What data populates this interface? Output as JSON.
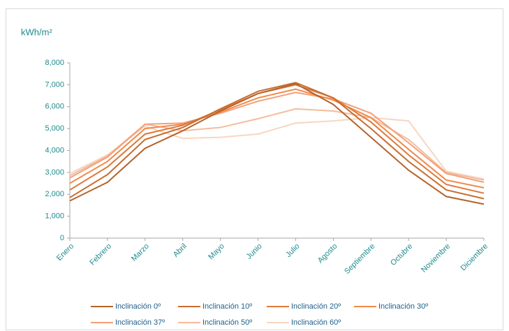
{
  "chart_data": {
    "type": "line",
    "y_label": "kWh/m²",
    "categories": [
      "Enero",
      "Febrero",
      "Marzo",
      "Abril",
      "Mayo",
      "Junio",
      "Julio",
      "Agosto",
      "Septiembre",
      "Octubre",
      "Noviembre",
      "Diciembre"
    ],
    "series": [
      {
        "name": "Inclinación 0º",
        "color": "#b5622a",
        "values": [
          1700,
          2550,
          4100,
          4900,
          5800,
          6600,
          7050,
          6100,
          4600,
          3100,
          1900,
          1550
        ]
      },
      {
        "name": "Inclinación 10º",
        "color": "#c86d30",
        "values": [
          1850,
          2900,
          4500,
          5050,
          5900,
          6700,
          7100,
          6400,
          5000,
          3500,
          2200,
          1800
        ]
      },
      {
        "name": "Inclinación 20º",
        "color": "#dc7a3c",
        "values": [
          2200,
          3250,
          4750,
          5150,
          5850,
          6600,
          7000,
          6400,
          5300,
          3800,
          2450,
          2050
        ]
      },
      {
        "name": "Inclinación 30º",
        "color": "#f08a4b",
        "values": [
          2500,
          3500,
          5000,
          5200,
          5750,
          6400,
          6800,
          6300,
          5500,
          4050,
          2650,
          2300
        ]
      },
      {
        "name": "Inclinación 37º",
        "color": "#f2a07a",
        "values": [
          2750,
          3700,
          5200,
          5250,
          5700,
          6250,
          6650,
          6350,
          5700,
          4350,
          2950,
          2550
        ]
      },
      {
        "name": "Inclinación 50º",
        "color": "#f5bc9c",
        "values": [
          2850,
          3750,
          5200,
          4900,
          5050,
          5450,
          5900,
          5800,
          5500,
          4500,
          3000,
          2650
        ]
      },
      {
        "name": "Inclinación 60º",
        "color": "#f8d6c2",
        "values": [
          2950,
          3800,
          5100,
          4550,
          4600,
          4750,
          5250,
          5350,
          5500,
          5350,
          3050,
          2700
        ]
      }
    ],
    "ylim": [
      0,
      8000
    ],
    "yticks": [
      0,
      {
        "value": 1000,
        "label": "1,000"
      },
      {
        "value": 2000,
        "label": "2,000"
      },
      {
        "value": 3000,
        "label": "3,000"
      },
      {
        "value": 4000,
        "label": "4,000"
      },
      {
        "value": 5000,
        "label": "5,000"
      },
      {
        "value": 6000,
        "label": "6,000"
      },
      {
        "value": 7000,
        "label": "7,000"
      },
      {
        "value": 8000,
        "label": "8,000"
      }
    ],
    "grid": false,
    "legend": "bottom"
  }
}
